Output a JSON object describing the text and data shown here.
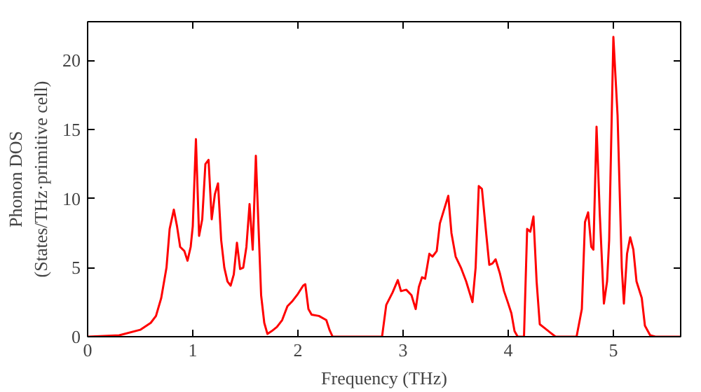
{
  "chart_data": {
    "type": "line",
    "xlabel": "Frequency (THz)",
    "ylabel": "Phonon DOS\n(States/THz·primitive cell)",
    "xlim": [
      0,
      5.64
    ],
    "ylim": [
      0,
      22.8
    ],
    "xticks": [
      0,
      1,
      2,
      3,
      4,
      5
    ],
    "yticks": [
      0,
      5,
      10,
      15,
      20
    ],
    "grid": false,
    "marker": "none",
    "line_style": "solid",
    "series": [
      {
        "color": "#ff0000",
        "x": [
          0,
          0.3,
          0.5,
          0.6,
          0.65,
          0.7,
          0.75,
          0.78,
          0.82,
          0.85,
          0.88,
          0.92,
          0.95,
          0.98,
          1.0,
          1.03,
          1.06,
          1.09,
          1.12,
          1.15,
          1.18,
          1.21,
          1.24,
          1.27,
          1.3,
          1.33,
          1.36,
          1.39,
          1.42,
          1.45,
          1.48,
          1.51,
          1.54,
          1.57,
          1.6,
          1.62,
          1.65,
          1.68,
          1.71,
          1.75,
          1.8,
          1.85,
          1.9,
          1.95,
          2.0,
          2.05,
          2.07,
          2.1,
          2.13,
          2.2,
          2.27,
          2.3,
          2.33,
          2.8,
          2.84,
          2.9,
          2.95,
          2.98,
          3.03,
          3.08,
          3.12,
          3.15,
          3.18,
          3.21,
          3.25,
          3.28,
          3.32,
          3.35,
          3.43,
          3.46,
          3.5,
          3.55,
          3.6,
          3.66,
          3.69,
          3.72,
          3.75,
          3.79,
          3.82,
          3.85,
          3.88,
          3.92,
          3.96,
          4.0,
          4.03,
          4.06,
          4.09,
          4.15,
          4.18,
          4.21,
          4.24,
          4.27,
          4.3,
          4.35,
          4.4,
          4.45,
          4.65,
          4.7,
          4.73,
          4.76,
          4.79,
          4.81,
          4.84,
          4.87,
          4.91,
          4.94,
          4.96,
          5.0,
          5.04,
          5.08,
          5.1,
          5.13,
          5.16,
          5.19,
          5.22,
          5.27,
          5.3,
          5.35,
          5.4,
          5.64
        ],
        "values": [
          0,
          0.1,
          0.5,
          1.0,
          1.5,
          2.8,
          5,
          7.8,
          9.2,
          8,
          6.5,
          6.2,
          5.5,
          6.5,
          8,
          14.3,
          7.3,
          8.5,
          12.5,
          12.8,
          8.5,
          10.3,
          11.1,
          7,
          5,
          4,
          3.7,
          4.5,
          6.8,
          4.9,
          5.0,
          6.5,
          9.6,
          6.3,
          13.1,
          9,
          3,
          1.0,
          0.2,
          0.4,
          0.7,
          1.2,
          2.2,
          2.6,
          3.1,
          3.7,
          3.8,
          2.0,
          1.6,
          1.5,
          1.2,
          0.5,
          0,
          0,
          2.3,
          3.2,
          4.1,
          3.3,
          3.4,
          3.0,
          2.0,
          3.6,
          4.3,
          4.2,
          6.0,
          5.8,
          6.2,
          8.2,
          10.2,
          7.5,
          5.8,
          5.0,
          4.0,
          2.5,
          5,
          10.9,
          10.7,
          7.5,
          5.2,
          5.3,
          5.6,
          4.6,
          3.3,
          2.4,
          1.7,
          0.4,
          0,
          0,
          7.8,
          7.6,
          8.7,
          4,
          0.9,
          0.6,
          0.3,
          0,
          0,
          2,
          8.3,
          9.0,
          6.5,
          6.3,
          15.2,
          9,
          2.4,
          4.0,
          7,
          21.7,
          16,
          5,
          2.4,
          6,
          7.2,
          6.3,
          4,
          2.8,
          0.8,
          0.1,
          0,
          0
        ]
      }
    ]
  }
}
